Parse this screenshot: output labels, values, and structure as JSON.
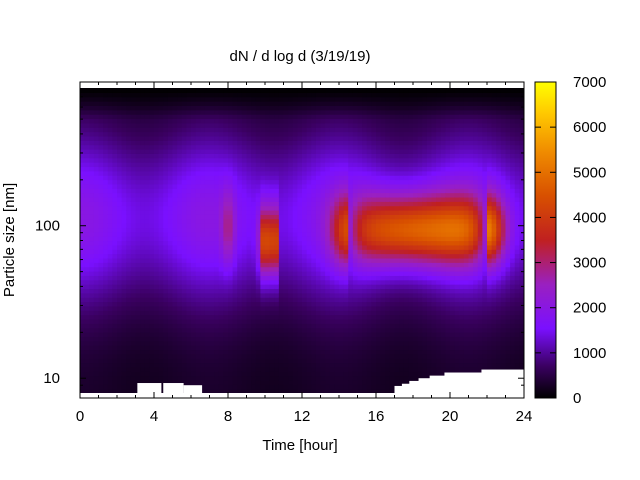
{
  "chart_data": {
    "type": "heatmap",
    "title": "dN / d log d (3/19/19)",
    "xlabel": "Time [hour]",
    "ylabel": "Particle size [nm]",
    "xlim": [
      0,
      24
    ],
    "ylim": [
      8,
      800
    ],
    "y_scale": "log",
    "x_ticks": [
      0,
      4,
      8,
      12,
      16,
      20,
      24
    ],
    "y_ticks": [
      10,
      100
    ],
    "colorbar": {
      "range": [
        0,
        7000
      ],
      "ticks": [
        0,
        1000,
        2000,
        3000,
        4000,
        5000,
        6000,
        7000
      ],
      "palette": "black-purple-red-orange-yellow"
    },
    "features": [
      {
        "description_hours": [
          7.7,
          8.3
        ],
        "peak_size_nm": 100,
        "value": 2800
      },
      {
        "description_hours": [
          9.6,
          10.6
        ],
        "peak_size_nm": 80,
        "value": 4300
      },
      {
        "description_hours": [
          14.5,
          22.0
        ],
        "peak_size_nm": 95,
        "value": 5200
      }
    ],
    "no_data_regions": [
      {
        "hours": [
          3.1,
          4.4
        ],
        "below_nm": 9.3
      },
      {
        "hours": [
          4.5,
          5.6
        ],
        "below_nm": 9.3
      },
      {
        "hours": [
          5.6,
          6.6
        ],
        "below_nm": 9.0
      },
      {
        "hours": [
          17.0,
          24.0
        ],
        "below_nm": 11.5
      }
    ]
  }
}
